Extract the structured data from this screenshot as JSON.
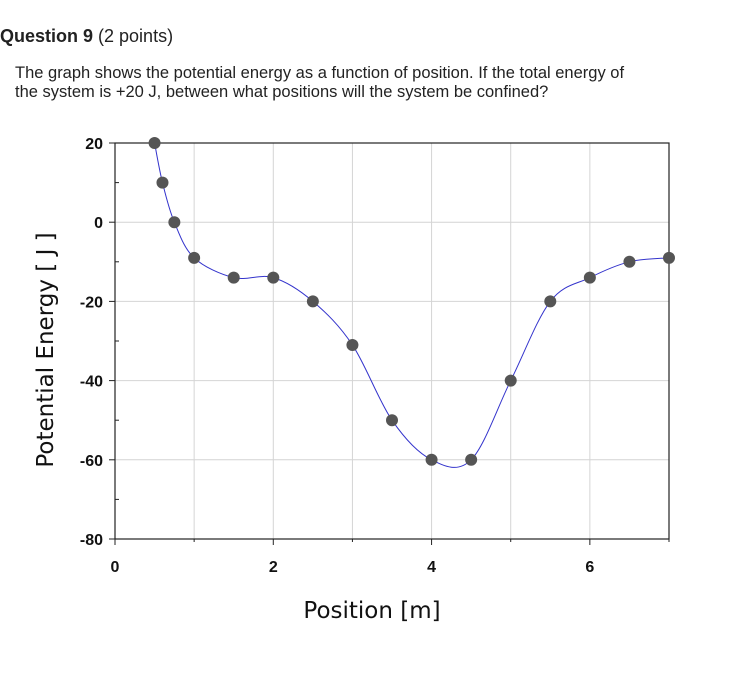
{
  "question": {
    "title": "Question 9",
    "points": "(2 points)",
    "text_line1": "The graph shows the potential energy as a function of position.  If the total energy of",
    "text_line2": "the system is +20 J, between what positions will the system be confined?"
  },
  "chart_data": {
    "type": "line",
    "title": "",
    "xlabel": "Position  [m]",
    "ylabel": "Potential Energy [ J ]",
    "xlim": [
      0,
      7
    ],
    "ylim": [
      -80,
      20
    ],
    "xticks": [
      0,
      2,
      4,
      6
    ],
    "yticks": [
      20,
      0,
      -20,
      -40,
      -60,
      -80
    ],
    "grid": true,
    "line_color": "#3333cc",
    "marker_color": "#555555",
    "x": [
      0.5,
      0.6,
      0.75,
      1.0,
      1.5,
      2.0,
      2.5,
      3.0,
      3.5,
      4.0,
      4.5,
      5.0,
      5.5,
      6.0,
      6.5,
      7.0
    ],
    "y": [
      20,
      10,
      0,
      -9,
      -14,
      -14,
      -20,
      -31,
      -50,
      -60,
      -60,
      -40,
      -20,
      -14,
      -10,
      -9
    ]
  }
}
